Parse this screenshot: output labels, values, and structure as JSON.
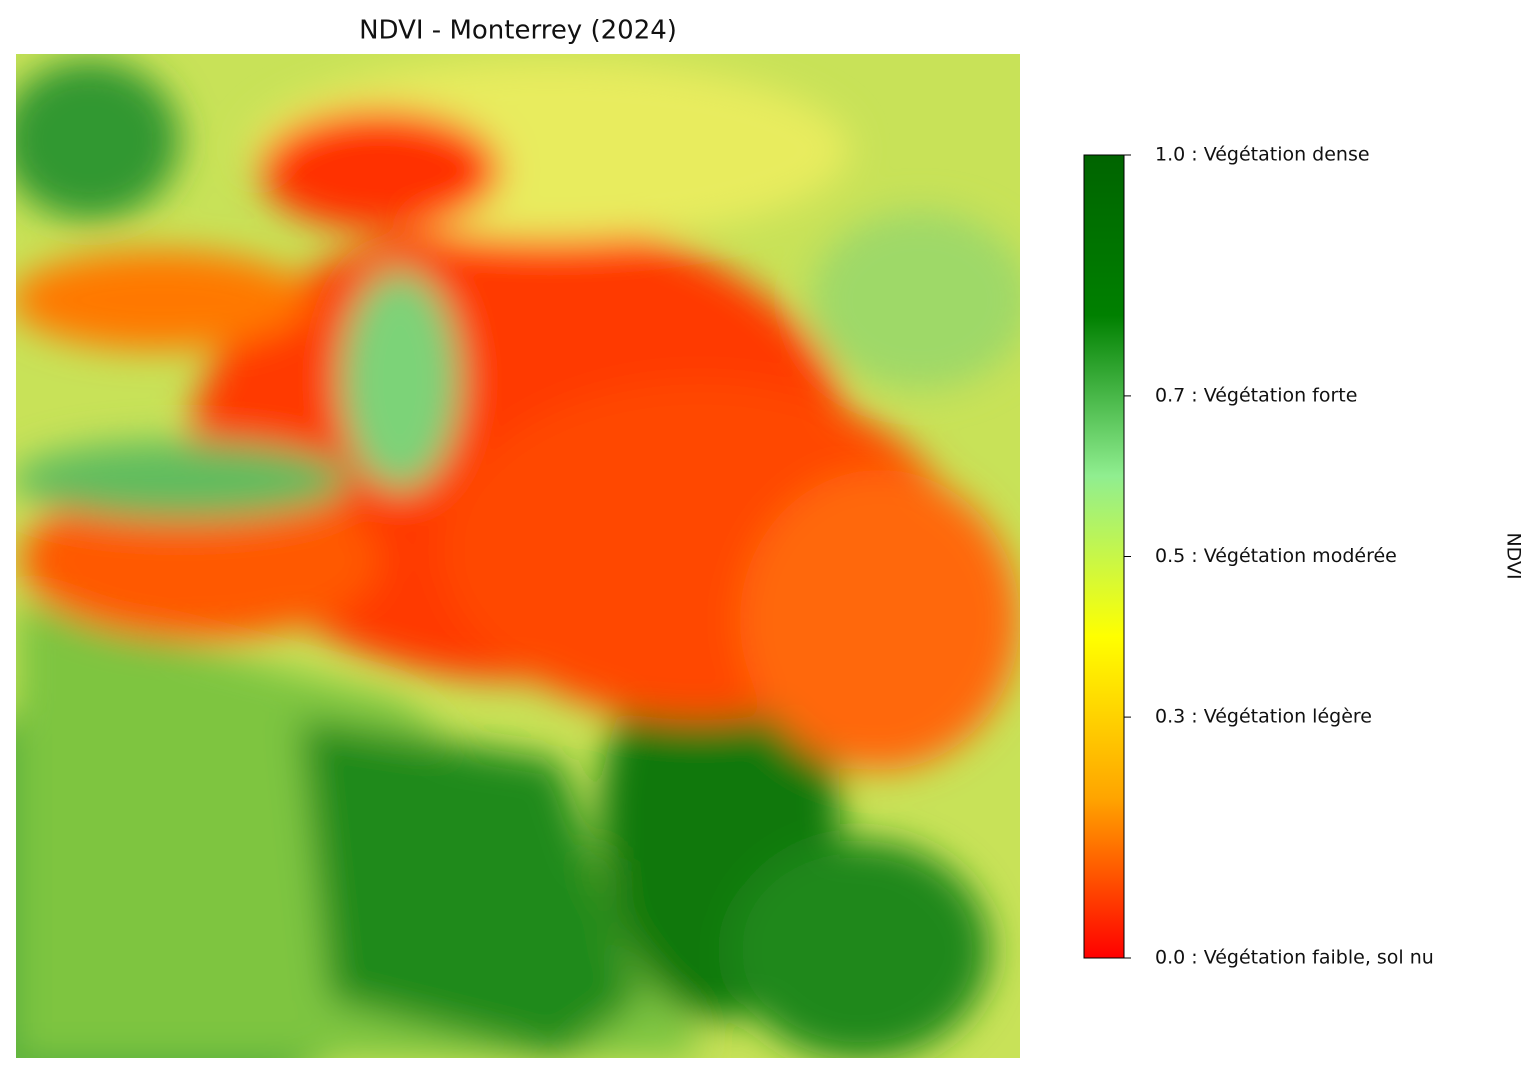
{
  "chart_data": {
    "type": "raster",
    "title": "NDVI - Monterrey (2024)",
    "colorbar": {
      "label": "NDVI",
      "lim": [
        0,
        1
      ],
      "ticks": [
        {
          "value": 0.0,
          "label": "0.0 : Végétation faible, sol nu"
        },
        {
          "value": 0.3,
          "label": "0.3 : Végétation légère"
        },
        {
          "value": 0.5,
          "label": "0.5 : Végétation modérée"
        },
        {
          "value": 0.7,
          "label": "0.7 : Végétation forte"
        },
        {
          "value": 1.0,
          "label": "1.0 : Végétation dense"
        }
      ],
      "colors": [
        "#ff0000",
        "#ffa500",
        "#ffff00",
        "#90ee90",
        "#008000",
        "#006400"
      ]
    }
  }
}
